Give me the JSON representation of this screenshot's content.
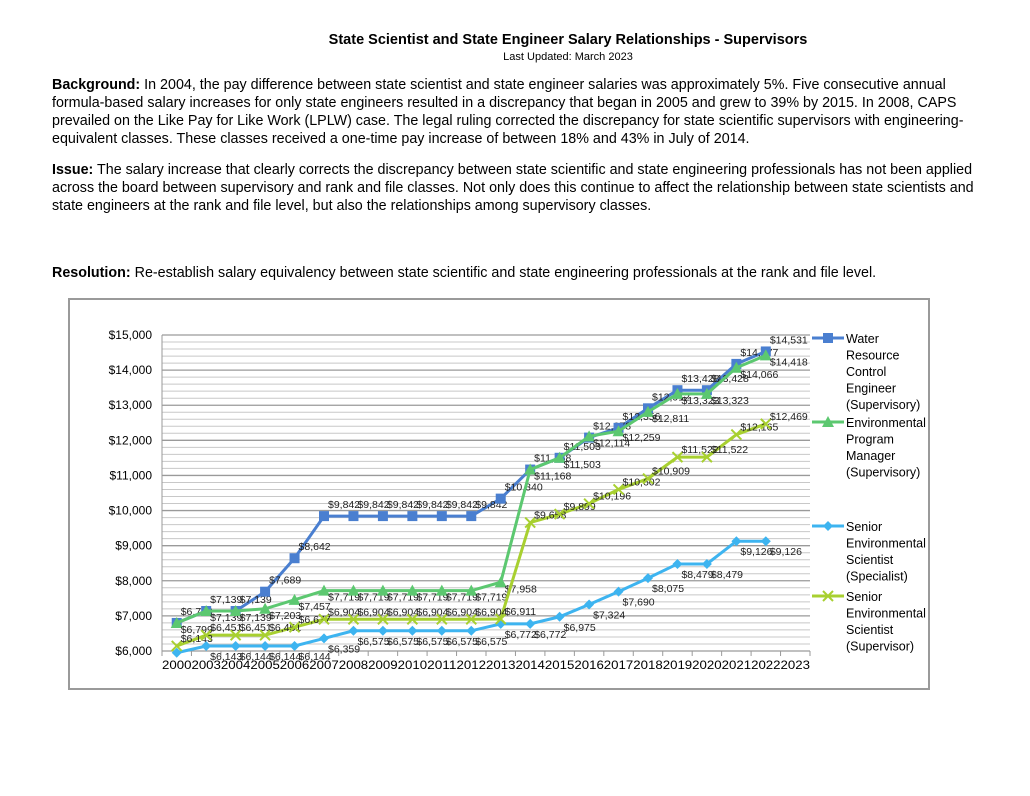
{
  "header": {
    "title": "State Scientist and State Engineer Salary Relationships - Supervisors",
    "updated": "Last Updated: March 2023"
  },
  "background": {
    "label": "Background:",
    "text": " In 2004, the pay difference between state scientist and state engineer salaries was approximately 5%. Five consecutive annual formula-based salary increases for only state engineers resulted in a discrepancy that began in 2005 and grew to 39% by 2015. In 2008, CAPS prevailed on the Like Pay for Like Work (LPLW) case. The legal ruling corrected the discrepancy for state scientific supervisors with engineering-equivalent classes. These classes received a one-time pay increase of between 18% and 43% in July of 2014."
  },
  "issue": {
    "label": "Issue:",
    "text": " The salary increase that clearly corrects the discrepancy between state scientific and state engineering professionals has not been applied across the board between supervisory and rank and file classes. Not only does this continue to affect the relationship between state scientists and state engineers at the rank and file level, but also the relationships among supervisory classes."
  },
  "resolution": {
    "label": "Resolution:",
    "text": " Re-establish salary equivalency between state scientific and state engineering professionals at the rank and file level."
  },
  "chart_data": {
    "type": "line",
    "title": "",
    "xlabel": "",
    "ylabel": "",
    "ylim": [
      6000,
      15000
    ],
    "yticks": [
      "$6,000",
      "$7,000",
      "$8,000",
      "$9,000",
      "$10,000",
      "$11,000",
      "$12,000",
      "$13,000",
      "$14,000",
      "$15,000"
    ],
    "grid": true,
    "legend": "right",
    "categories": [
      "2000",
      "2003",
      "2004",
      "2005",
      "2006",
      "2007",
      "2008",
      "2009",
      "2010",
      "2011",
      "2012",
      "2013",
      "2014",
      "2015",
      "2016",
      "2017",
      "2018",
      "2019",
      "2020",
      "2021",
      "2022",
      "2023"
    ],
    "series": [
      {
        "name": "Water Resource Control Engineer (Supervisory)",
        "legend_lines": [
          "Water",
          "Resource",
          "Control",
          "Engineer",
          "(Supervisory)"
        ],
        "color": "#4a7fd0",
        "marker": "square",
        "values": [
          6799,
          7139,
          7139,
          7689,
          8642,
          9842,
          9842,
          9842,
          9842,
          9842,
          9842,
          10340,
          11168,
          11503,
          12078,
          12356,
          12912,
          13428,
          13428,
          14177,
          14531,
          null
        ]
      },
      {
        "name": "Environmental Program Manager (Supervisory)",
        "legend_lines": [
          "Environmental",
          "Program",
          "Manager",
          "(Supervisory)"
        ],
        "color": "#5cc870",
        "marker": "triangle",
        "values": [
          6799,
          7139,
          7139,
          7203,
          7457,
          7719,
          7719,
          7719,
          7719,
          7719,
          7719,
          7958,
          11168,
          11503,
          12114,
          12259,
          12811,
          13323,
          13323,
          14066,
          14418,
          null
        ]
      },
      {
        "name": "Senior Environmental Scientist (Specialist)",
        "legend_lines": [
          "Senior",
          "Environmental",
          "Scientist",
          "(Specialist)"
        ],
        "color": "#3db4f0",
        "marker": "diamond",
        "values": [
          5950,
          6143,
          6144,
          6144,
          6144,
          6359,
          6575,
          6575,
          6575,
          6575,
          6575,
          6772,
          6772,
          6975,
          7324,
          7690,
          8075,
          8479,
          8479,
          9126,
          9126,
          null
        ]
      },
      {
        "name": "Senior Environmental Scientist (Supervisor)",
        "legend_lines": [
          "Senior",
          "Environmental",
          "Scientist",
          "(Supervisor)"
        ],
        "color": "#a8d030",
        "marker": "x",
        "values": [
          6143,
          6451,
          6451,
          6451,
          6677,
          6904,
          6904,
          6904,
          6904,
          6904,
          6904,
          6911,
          9658,
          9899,
          10196,
          10602,
          10909,
          11522,
          11522,
          12165,
          12469,
          null
        ]
      }
    ]
  }
}
